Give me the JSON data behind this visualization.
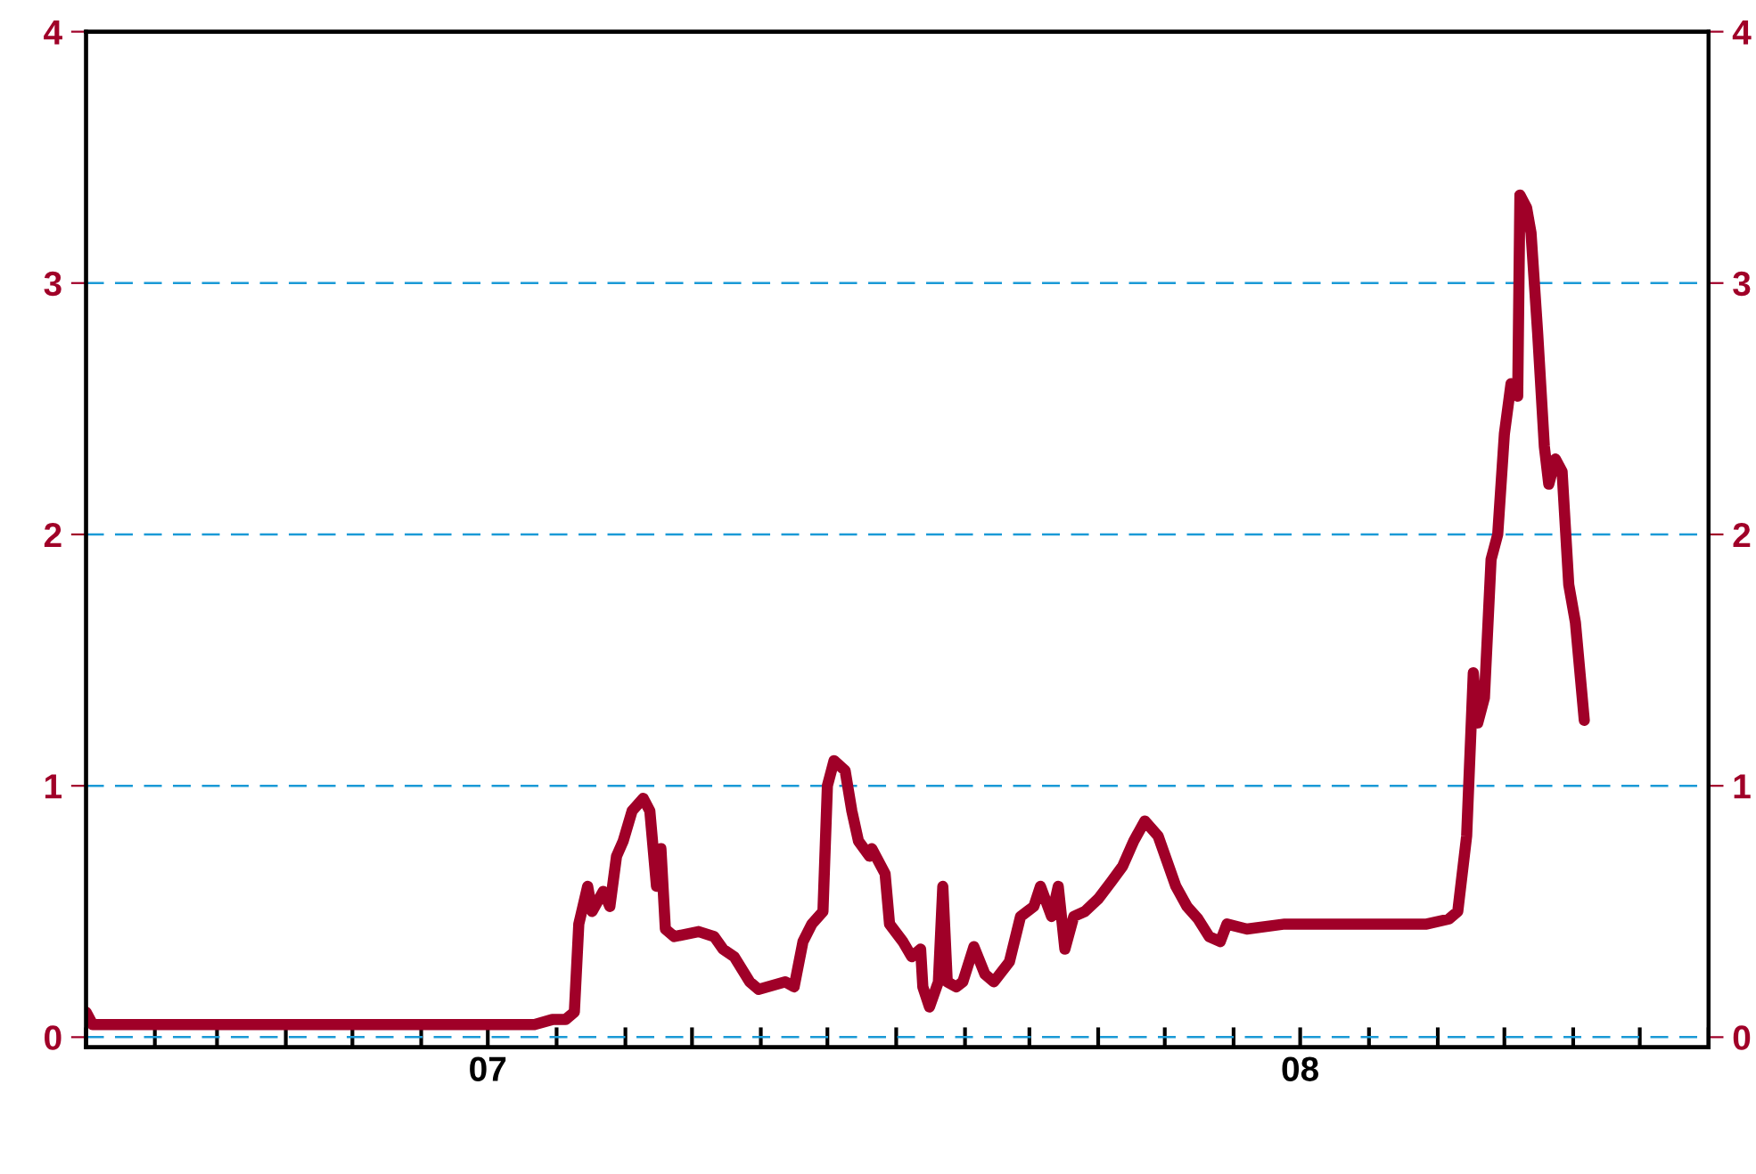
{
  "chart_data": {
    "type": "line",
    "color": "#a00028",
    "line_style": "solid",
    "marker": "none",
    "grid": "y",
    "legend": false,
    "x": [
      "2007-01-01",
      "2007-01-04",
      "2007-02-28",
      "2007-05-03",
      "2007-07-22",
      "2007-07-30",
      "2007-08-05",
      "2007-08-09",
      "2007-08-11",
      "2007-08-15",
      "2007-08-17",
      "2007-08-22",
      "2007-08-25",
      "2007-08-28",
      "2007-08-31",
      "2007-09-04",
      "2007-09-09",
      "2007-09-12",
      "2007-09-15",
      "2007-09-17",
      "2007-09-19",
      "2007-09-23",
      "2007-10-04",
      "2007-10-11",
      "2007-10-15",
      "2007-10-20",
      "2007-10-27",
      "2007-10-31",
      "2007-11-12",
      "2007-11-16",
      "2007-11-20",
      "2007-11-24",
      "2007-11-29",
      "2007-12-01",
      "2007-12-04",
      "2007-12-09",
      "2007-12-12",
      "2007-12-15",
      "2007-12-20",
      "2007-12-21",
      "2007-12-27",
      "2007-12-29",
      "2008-01-04",
      "2008-01-08",
      "2008-01-12",
      "2008-01-13",
      "2008-01-16",
      "2008-01-20",
      "2008-01-22",
      "2008-01-24",
      "2008-01-28",
      "2008-01-31",
      "2008-02-05",
      "2008-02-10",
      "2008-02-14",
      "2008-02-21",
      "2008-02-26",
      "2008-03-03",
      "2008-03-06",
      "2008-03-11",
      "2008-03-14",
      "2008-03-17",
      "2008-03-21",
      "2008-03-26",
      "2008-04-01",
      "2008-04-07",
      "2008-04-12",
      "2008-04-17",
      "2008-04-22",
      "2008-04-28",
      "2008-05-02",
      "2008-05-06",
      "2008-05-11",
      "2008-05-16",
      "2008-05-21",
      "2008-05-26",
      "2008-05-29",
      "2008-06-07",
      "2008-06-24",
      "2008-07-26",
      "2008-08-27",
      "2008-09-06",
      "2008-09-10",
      "2008-09-14",
      "2008-09-17",
      "2008-09-19",
      "2008-09-22",
      "2008-09-25",
      "2008-09-28",
      "2008-10-01",
      "2008-10-04",
      "2008-10-07",
      "2008-10-08",
      "2008-10-11",
      "2008-10-13",
      "2008-10-16",
      "2008-10-19",
      "2008-10-21",
      "2008-10-24",
      "2008-10-27",
      "2008-10-30",
      "2008-11-02",
      "2008-11-06"
    ],
    "values": [
      0.1,
      0.05,
      0.05,
      0.05,
      0.05,
      0.07,
      0.07,
      0.1,
      0.45,
      0.6,
      0.5,
      0.58,
      0.52,
      0.72,
      0.78,
      0.9,
      0.95,
      0.9,
      0.6,
      0.75,
      0.43,
      0.4,
      0.42,
      0.4,
      0.35,
      0.32,
      0.22,
      0.19,
      0.22,
      0.2,
      0.38,
      0.45,
      0.5,
      1.0,
      1.1,
      1.06,
      0.9,
      0.78,
      0.72,
      0.75,
      0.65,
      0.45,
      0.38,
      0.32,
      0.35,
      0.2,
      0.12,
      0.22,
      0.6,
      0.22,
      0.2,
      0.22,
      0.36,
      0.25,
      0.22,
      0.3,
      0.48,
      0.52,
      0.6,
      0.48,
      0.6,
      0.35,
      0.48,
      0.5,
      0.55,
      0.62,
      0.68,
      0.78,
      0.86,
      0.8,
      0.7,
      0.6,
      0.52,
      0.47,
      0.4,
      0.38,
      0.45,
      0.43,
      0.45,
      0.45,
      0.45,
      0.47,
      0.5,
      0.8,
      1.45,
      1.25,
      1.35,
      1.9,
      2.0,
      2.4,
      2.6,
      2.55,
      3.35,
      3.3,
      3.2,
      2.8,
      2.35,
      2.2,
      2.3,
      2.25,
      1.8,
      1.65,
      1.26
    ],
    "xlim": [
      "2007-01-01",
      "2009-01-01"
    ],
    "xticks": [
      {
        "value": "2007-01-01",
        "label": null
      },
      {
        "value": "2007-02-01",
        "label": null
      },
      {
        "value": "2007-03-01",
        "label": null
      },
      {
        "value": "2007-04-01",
        "label": null
      },
      {
        "value": "2007-05-01",
        "label": null
      },
      {
        "value": "2007-06-01",
        "label": null
      },
      {
        "value": "2007-07-01",
        "label": "07"
      },
      {
        "value": "2007-08-01",
        "label": null
      },
      {
        "value": "2007-09-01",
        "label": null
      },
      {
        "value": "2007-10-01",
        "label": null
      },
      {
        "value": "2007-11-01",
        "label": null
      },
      {
        "value": "2007-12-01",
        "label": null
      },
      {
        "value": "2008-01-01",
        "label": null
      },
      {
        "value": "2008-02-01",
        "label": null
      },
      {
        "value": "2008-03-01",
        "label": null
      },
      {
        "value": "2008-04-01",
        "label": null
      },
      {
        "value": "2008-05-01",
        "label": null
      },
      {
        "value": "2008-06-01",
        "label": null
      },
      {
        "value": "2008-07-01",
        "label": "08"
      },
      {
        "value": "2008-08-01",
        "label": null
      },
      {
        "value": "2008-09-01",
        "label": null
      },
      {
        "value": "2008-10-01",
        "label": null
      },
      {
        "value": "2008-11-01",
        "label": null
      },
      {
        "value": "2008-12-01",
        "label": null
      },
      {
        "value": "2009-01-01",
        "label": null
      }
    ],
    "ylim": [
      -0.04,
      4
    ],
    "yticks": [
      0,
      1,
      2,
      3,
      4
    ],
    "y2lim": [
      -0.04,
      4
    ],
    "y2ticks": [
      0,
      1,
      2,
      3,
      4
    ]
  }
}
